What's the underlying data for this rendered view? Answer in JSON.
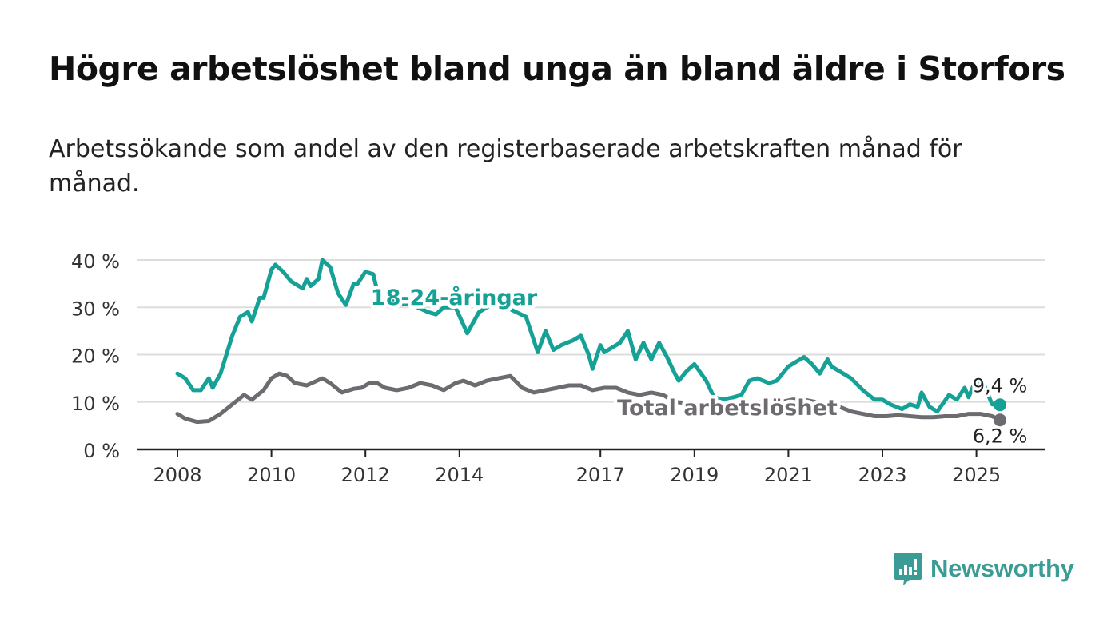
{
  "title": "Högre arbetslöshet bland unga än bland äldre i Storfors",
  "subtitle": "Arbetssökande som andel av den registerbaserade arbetskraften månad för månad.",
  "brand": {
    "name": "Newsworthy"
  },
  "colors": {
    "youth": "#16a196",
    "total": "#6d6a70",
    "grid": "#dddddd",
    "axis": "#222222"
  },
  "chart_data": {
    "type": "line",
    "title": "Högre arbetslöshet bland unga än bland äldre i Storfors",
    "subtitle": "Arbetssökande som andel av den registerbaserade arbetskraften månad för månad.",
    "xlabel": "",
    "ylabel": "",
    "ylim": [
      0,
      40
    ],
    "xlim": [
      "2007-12",
      "2025-12"
    ],
    "y_ticks": [
      "0 %",
      "10 %",
      "20 %",
      "30 %",
      "40 %"
    ],
    "x_ticks": [
      "2008",
      "2010",
      "2012",
      "2014",
      "2017",
      "2019",
      "2021",
      "2023",
      "2025"
    ],
    "grid": true,
    "legend": "inline labels",
    "series": [
      {
        "name": "18-24-åringar",
        "color": "#16a196",
        "end_label": "9,4 %",
        "points": [
          [
            "2008-01",
            16
          ],
          [
            "2008-03",
            15
          ],
          [
            "2008-05",
            12.5
          ],
          [
            "2008-07",
            12.5
          ],
          [
            "2008-09",
            15
          ],
          [
            "2008-10",
            13
          ],
          [
            "2008-12",
            16
          ],
          [
            "2009-03",
            24
          ],
          [
            "2009-05",
            28
          ],
          [
            "2009-07",
            29
          ],
          [
            "2009-08",
            27
          ],
          [
            "2009-10",
            32
          ],
          [
            "2009-11",
            32
          ],
          [
            "2010-01",
            38
          ],
          [
            "2010-02",
            39
          ],
          [
            "2010-04",
            37.5
          ],
          [
            "2010-06",
            35.5
          ],
          [
            "2010-09",
            34
          ],
          [
            "2010-10",
            36
          ],
          [
            "2010-11",
            34.5
          ],
          [
            "2011-01",
            36
          ],
          [
            "2011-02",
            40
          ],
          [
            "2011-04",
            38.5
          ],
          [
            "2011-06",
            33
          ],
          [
            "2011-08",
            30.5
          ],
          [
            "2011-10",
            35
          ],
          [
            "2011-11",
            35
          ],
          [
            "2012-01",
            37.5
          ],
          [
            "2012-03",
            37
          ],
          [
            "2012-04",
            33.5
          ],
          [
            "2012-06",
            32
          ],
          [
            "2012-09",
            31
          ],
          [
            "2013-01",
            30.5
          ],
          [
            "2013-05",
            29
          ],
          [
            "2013-07",
            28.5
          ],
          [
            "2013-09",
            30
          ],
          [
            "2013-12",
            30
          ],
          [
            "2014-03",
            24.5
          ],
          [
            "2014-06",
            29
          ],
          [
            "2014-10",
            31
          ],
          [
            "2015-01",
            30
          ],
          [
            "2015-06",
            28
          ],
          [
            "2015-09",
            20.5
          ],
          [
            "2015-11",
            25
          ],
          [
            "2016-01",
            21
          ],
          [
            "2016-03",
            22
          ],
          [
            "2016-06",
            23
          ],
          [
            "2016-08",
            24
          ],
          [
            "2016-10",
            20
          ],
          [
            "2016-11",
            17
          ],
          [
            "2017-01",
            22
          ],
          [
            "2017-02",
            20.5
          ],
          [
            "2017-05",
            22
          ],
          [
            "2017-06",
            22.5
          ],
          [
            "2017-08",
            25
          ],
          [
            "2017-10",
            19
          ],
          [
            "2017-12",
            22.5
          ],
          [
            "2018-02",
            19
          ],
          [
            "2018-04",
            22.5
          ],
          [
            "2018-06",
            19.5
          ],
          [
            "2018-08",
            16
          ],
          [
            "2018-09",
            14.5
          ],
          [
            "2018-11",
            16.5
          ],
          [
            "2019-01",
            18
          ],
          [
            "2019-04",
            14.5
          ],
          [
            "2019-06",
            11
          ],
          [
            "2019-08",
            10.5
          ],
          [
            "2019-11",
            11
          ],
          [
            "2020-01",
            11.5
          ],
          [
            "2020-03",
            14.5
          ],
          [
            "2020-05",
            15
          ],
          [
            "2020-08",
            14
          ],
          [
            "2020-10",
            14.5
          ],
          [
            "2021-01",
            17.5
          ],
          [
            "2021-03",
            18.5
          ],
          [
            "2021-05",
            19.5
          ],
          [
            "2021-07",
            18
          ],
          [
            "2021-09",
            16
          ],
          [
            "2021-11",
            19
          ],
          [
            "2021-12",
            17.5
          ],
          [
            "2022-02",
            16.5
          ],
          [
            "2022-05",
            15
          ],
          [
            "2022-08",
            12.5
          ],
          [
            "2022-11",
            10.5
          ],
          [
            "2023-01",
            10.5
          ],
          [
            "2023-03",
            9.5
          ],
          [
            "2023-06",
            8.5
          ],
          [
            "2023-08",
            9.5
          ],
          [
            "2023-10",
            9
          ],
          [
            "2023-11",
            12
          ],
          [
            "2024-01",
            9
          ],
          [
            "2024-03",
            8
          ],
          [
            "2024-06",
            11.5
          ],
          [
            "2024-08",
            10.5
          ],
          [
            "2024-10",
            13
          ],
          [
            "2024-11",
            11
          ],
          [
            "2025-01",
            15
          ],
          [
            "2025-02",
            12.5
          ],
          [
            "2025-03",
            13.5
          ],
          [
            "2025-05",
            9.5
          ],
          [
            "2025-07",
            9.4
          ]
        ]
      },
      {
        "name": "Total arbetslöshet",
        "color": "#6d6a70",
        "end_label": "6,2 %",
        "points": [
          [
            "2008-01",
            7.5
          ],
          [
            "2008-03",
            6.5
          ],
          [
            "2008-06",
            5.8
          ],
          [
            "2008-09",
            6
          ],
          [
            "2008-12",
            7.5
          ],
          [
            "2009-03",
            9.5
          ],
          [
            "2009-06",
            11.5
          ],
          [
            "2009-08",
            10.5
          ],
          [
            "2009-11",
            12.5
          ],
          [
            "2010-01",
            15
          ],
          [
            "2010-03",
            16
          ],
          [
            "2010-05",
            15.5
          ],
          [
            "2010-07",
            14
          ],
          [
            "2010-10",
            13.5
          ],
          [
            "2011-02",
            15
          ],
          [
            "2011-04",
            14
          ],
          [
            "2011-07",
            12
          ],
          [
            "2011-10",
            12.8
          ],
          [
            "2011-12",
            13
          ],
          [
            "2012-02",
            14
          ],
          [
            "2012-04",
            14
          ],
          [
            "2012-06",
            13
          ],
          [
            "2012-09",
            12.5
          ],
          [
            "2012-12",
            13
          ],
          [
            "2013-03",
            14
          ],
          [
            "2013-06",
            13.5
          ],
          [
            "2013-09",
            12.5
          ],
          [
            "2013-12",
            14
          ],
          [
            "2014-02",
            14.5
          ],
          [
            "2014-05",
            13.5
          ],
          [
            "2014-08",
            14.5
          ],
          [
            "2014-11",
            15
          ],
          [
            "2015-02",
            15.5
          ],
          [
            "2015-05",
            13
          ],
          [
            "2015-08",
            12
          ],
          [
            "2015-11",
            12.5
          ],
          [
            "2016-02",
            13
          ],
          [
            "2016-05",
            13.5
          ],
          [
            "2016-08",
            13.5
          ],
          [
            "2016-11",
            12.5
          ],
          [
            "2017-02",
            13
          ],
          [
            "2017-05",
            13
          ],
          [
            "2017-08",
            12
          ],
          [
            "2017-11",
            11.5
          ],
          [
            "2018-02",
            12
          ],
          [
            "2018-05",
            11.5
          ],
          [
            "2018-08",
            10
          ],
          [
            "2018-11",
            9.8
          ],
          [
            "2019-02",
            9.5
          ],
          [
            "2019-05",
            9
          ],
          [
            "2019-08",
            9
          ],
          [
            "2019-11",
            9
          ],
          [
            "2020-02",
            9.5
          ],
          [
            "2020-05",
            10
          ],
          [
            "2020-08",
            10
          ],
          [
            "2020-11",
            10
          ],
          [
            "2021-02",
            10.5
          ],
          [
            "2021-05",
            10.5
          ],
          [
            "2021-08",
            10
          ],
          [
            "2021-11",
            9.5
          ],
          [
            "2022-02",
            9
          ],
          [
            "2022-05",
            8
          ],
          [
            "2022-08",
            7.5
          ],
          [
            "2022-11",
            7
          ],
          [
            "2023-02",
            7
          ],
          [
            "2023-05",
            7.2
          ],
          [
            "2023-08",
            7
          ],
          [
            "2023-11",
            6.8
          ],
          [
            "2024-02",
            6.8
          ],
          [
            "2024-05",
            7
          ],
          [
            "2024-08",
            7
          ],
          [
            "2024-11",
            7.5
          ],
          [
            "2025-02",
            7.5
          ],
          [
            "2025-05",
            7
          ],
          [
            "2025-07",
            6.2
          ]
        ]
      }
    ]
  }
}
